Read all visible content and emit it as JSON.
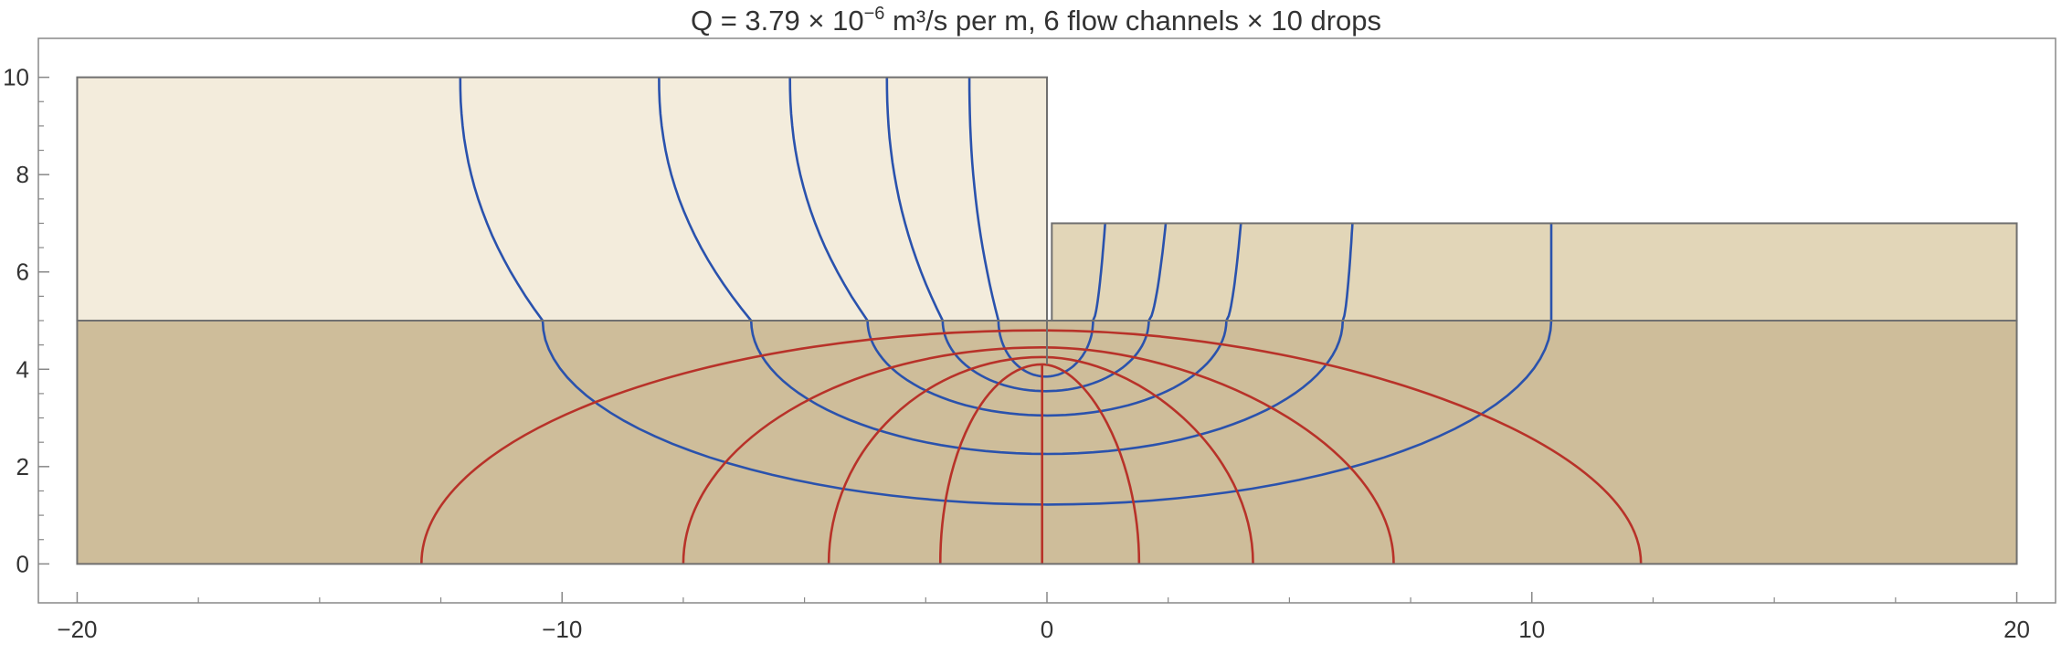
{
  "chart_data": {
    "type": "flownet",
    "title": {
      "prefix": "Q = 3.79 × 10",
      "exponent": "−6",
      "suffix": " m³/s per m,   6 flow channels × 10 drops"
    },
    "xlim": [
      -20.8,
      20.8
    ],
    "ylim": [
      -0.8,
      10.8
    ],
    "x_ticks": [
      -20,
      -10,
      0,
      10,
      20
    ],
    "y_ticks": [
      0,
      2,
      4,
      6,
      8,
      10
    ],
    "x_tick_labels": [
      "−20",
      "−10",
      "0",
      "10",
      "20"
    ],
    "y_tick_labels": [
      "0",
      "2",
      "4",
      "6",
      "8",
      "10"
    ],
    "grid": false,
    "colors": {
      "upper_layer": "#f3ecdc",
      "lower_layer": "#cebd9a",
      "right_upper_layer": "#e2d6b8",
      "flow_lines": "#2a52ad",
      "equipotentials": "#b83229",
      "outline": "#707070"
    },
    "regions": [
      {
        "name": "upstream-upper-layer",
        "x": [
          -20,
          0
        ],
        "y": [
          5,
          10
        ]
      },
      {
        "name": "downstream-upper-layer",
        "x": [
          0.1,
          20
        ],
        "y": [
          5,
          7
        ]
      },
      {
        "name": "lower-layer",
        "x": [
          -20,
          20
        ],
        "y": [
          0,
          5
        ]
      }
    ],
    "sheet_pile": {
      "x": 0,
      "y_bottom": 4.1,
      "y_top": 10
    },
    "flow_lines": [
      {
        "x_in": -12.1,
        "x_kink_left": -10.4,
        "x_kink_right": 10.4,
        "x_out": 10.4,
        "y_min": 1.22
      },
      {
        "x_in": -8.0,
        "x_kink_left": -6.1,
        "x_kink_right": 6.1,
        "x_out": 6.3,
        "y_min": 2.26
      },
      {
        "x_in": -5.3,
        "x_kink_left": -3.7,
        "x_kink_right": 3.7,
        "x_out": 4.0,
        "y_min": 3.05
      },
      {
        "x_in": -3.3,
        "x_kink_left": -2.15,
        "x_kink_right": 2.1,
        "x_out": 2.45,
        "y_min": 3.55
      },
      {
        "x_in": -1.6,
        "x_kink_left": -1.0,
        "x_kink_right": 0.95,
        "x_out": 1.2,
        "y_min": 3.85
      }
    ],
    "equipotential_lines": [
      {
        "x_start": -12.9,
        "x_end": 12.25,
        "y_top": 4.8
      },
      {
        "x_start": -7.5,
        "x_end": 7.15,
        "y_top": 4.45
      },
      {
        "x_start": -4.5,
        "x_end": 4.25,
        "y_top": 4.25
      },
      {
        "x_start": -2.2,
        "x_end": 1.9,
        "y_top": 4.1
      },
      {
        "x_start": -0.1,
        "x_end": -0.1,
        "y_top": 4.1
      }
    ]
  }
}
